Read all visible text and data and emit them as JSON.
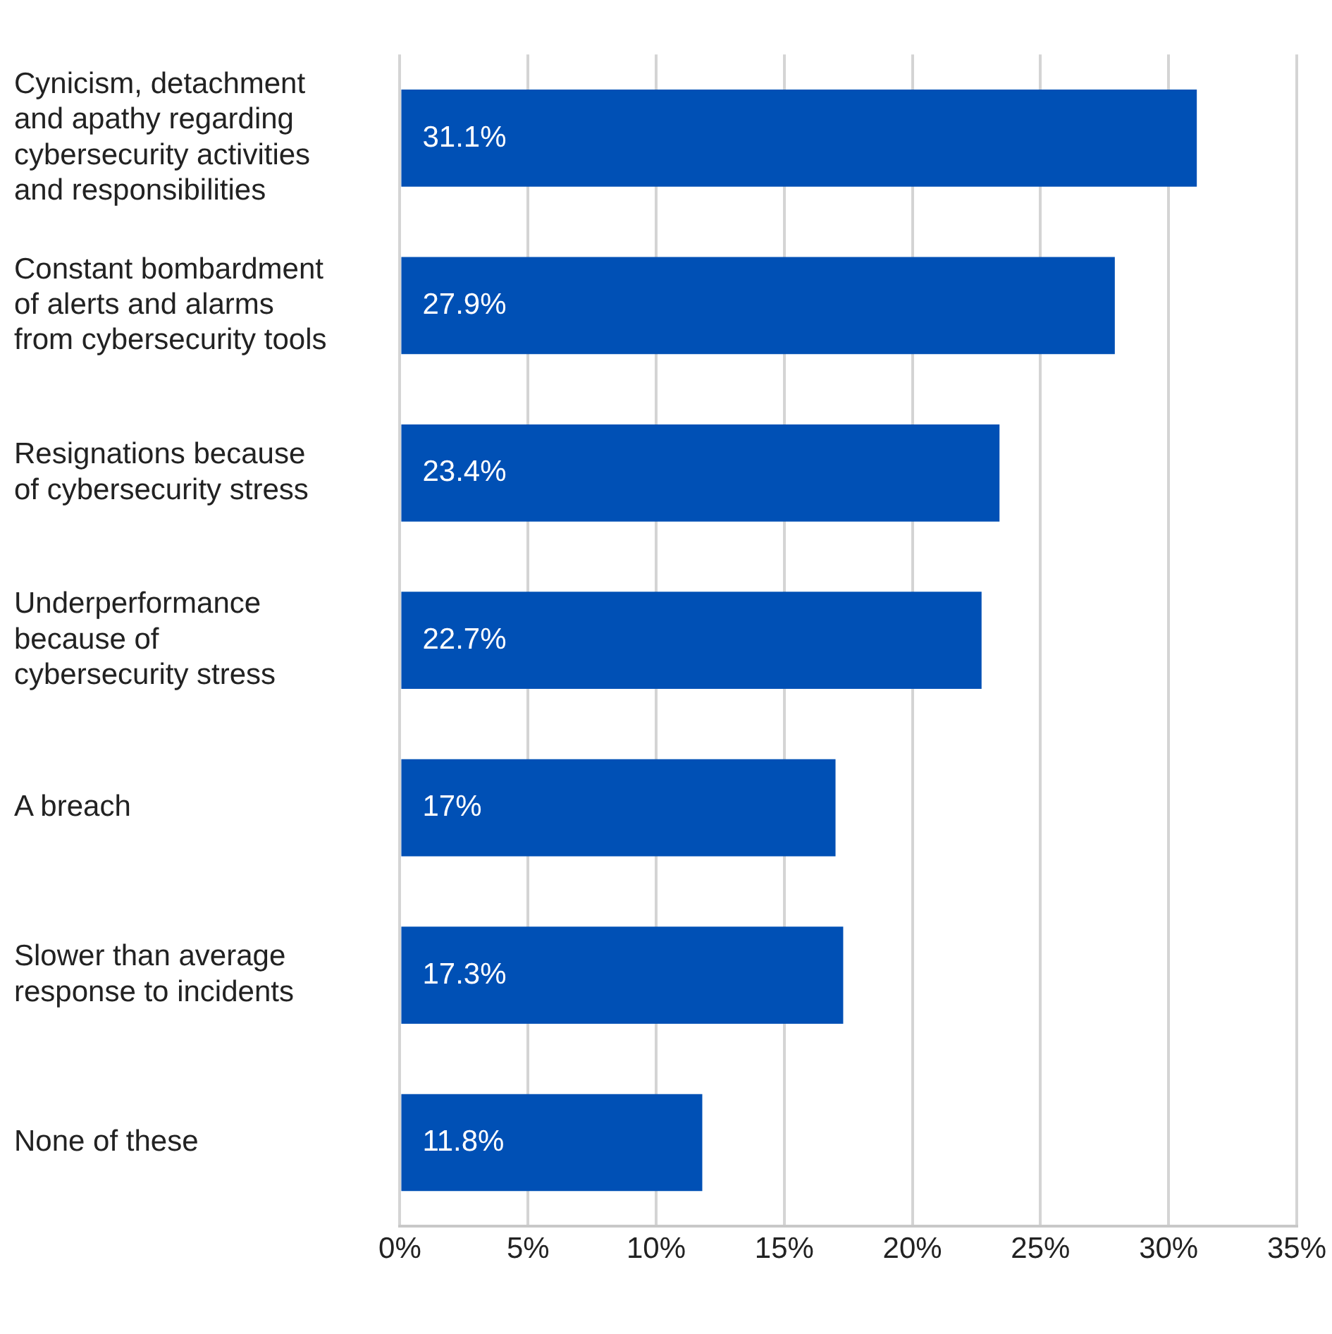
{
  "chart_data": {
    "type": "bar",
    "orientation": "horizontal",
    "categories": [
      "Cynicism, detachment\nand apathy regarding\ncybersecurity activities\nand responsibilities",
      "Constant bombardment\nof alerts and alarms\nfrom cybersecurity tools",
      "Resignations because\nof cybersecurity stress",
      "Underperformance\nbecause of\ncybersecurity stress",
      "A breach",
      "Slower than average\nresponse to incidents",
      "None of these"
    ],
    "values": [
      31.1,
      27.9,
      23.4,
      22.7,
      17,
      17.3,
      11.8
    ],
    "value_labels": [
      "31.1%",
      "27.9%",
      "23.4%",
      "22.7%",
      "17%",
      "17.3%",
      "11.8%"
    ],
    "color": "#0050b5",
    "xlim": [
      0,
      35
    ],
    "xticks": [
      {
        "value": 0,
        "label": "0%"
      },
      {
        "value": 5,
        "label": "5%"
      },
      {
        "value": 10,
        "label": "10%"
      },
      {
        "value": 15,
        "label": "15%"
      },
      {
        "value": 20,
        "label": "20%"
      },
      {
        "value": 25,
        "label": "25%"
      },
      {
        "value": 30,
        "label": "30%"
      },
      {
        "value": 35,
        "label": "35%"
      }
    ],
    "grid": "x",
    "legend": false
  }
}
